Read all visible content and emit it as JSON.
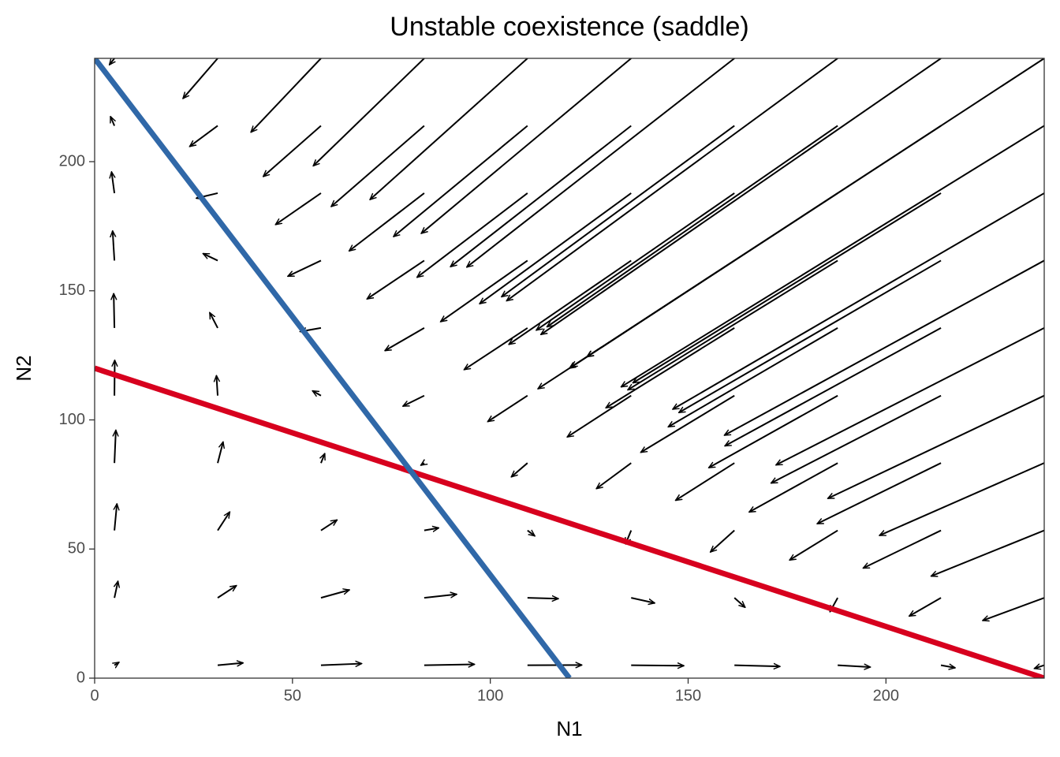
{
  "chart_data": {
    "type": "vector-field",
    "title": "Unstable coexistence (saddle)",
    "x_label": "N1",
    "y_label": "N2",
    "xlim": [
      0,
      240
    ],
    "ylim": [
      0,
      240
    ],
    "xticks": [
      0,
      50,
      100,
      150,
      200
    ],
    "yticks": [
      0,
      50,
      100,
      150,
      200
    ],
    "arrows": {
      "color": "#000000",
      "x": [
        5,
        31.1,
        57.2,
        83.3,
        109.4,
        135.6,
        161.7,
        187.8,
        213.9,
        240
      ],
      "y": [
        5,
        31.1,
        57.2,
        83.3,
        109.4,
        135.6,
        161.7,
        187.8,
        213.9,
        240
      ],
      "dx": [
        [
          1.17,
          0.9,
          0.63,
          0.36,
          0.08,
          -0.19,
          -0.46,
          -0.73,
          -1.0,
          -1.28
        ],
        [
          6.44,
          4.75,
          3.06,
          1.37,
          -0.32,
          -2.02,
          -3.71,
          -5.4,
          -7.09,
          -8.78
        ],
        [
          10.3,
          7.19,
          4.08,
          0.97,
          -2.14,
          -5.27,
          -8.38,
          -11.49,
          -14.6,
          -17.71
        ],
        [
          12.73,
          8.2,
          3.67,
          -0.86,
          -5.39,
          -9.94,
          -14.46,
          -18.99,
          -23.52,
          -28.05
        ],
        [
          13.74,
          7.79,
          1.85,
          -4.1,
          -10.05,
          -16.02,
          -21.97,
          -27.92,
          -33.87,
          -39.82
        ],
        [
          13.33,
          5.96,
          -1.41,
          -8.79,
          -16.16,
          -23.56,
          -30.93,
          -38.31,
          -45.68,
          -53.05
        ],
        [
          11.5,
          2.71,
          -6.08,
          -14.87,
          -23.67,
          -32.49,
          -41.28,
          -50.08,
          -58.87,
          -67.66
        ],
        [
          8.26,
          -1.96,
          -12.17,
          -22.38,
          -32.59,
          -42.84,
          -53.05,
          -63.27,
          -73.48,
          -83.69
        ],
        [
          3.59,
          -8.04,
          -19.67,
          -31.3,
          -42.94,
          -54.61,
          -66.24,
          -77.87,
          -89.5,
          -101.13
        ],
        [
          -2.5,
          -15.55,
          -28.6,
          -41.65,
          -54.7,
          -67.8,
          -80.85,
          -93.9,
          -106.95,
          -120
        ]
      ],
      "dy": [
        [
          1.17,
          6.44,
          10.3,
          12.73,
          13.74,
          13.33,
          11.5,
          8.26,
          3.59,
          -2.5
        ],
        [
          0.9,
          4.75,
          7.19,
          8.2,
          7.79,
          5.96,
          2.71,
          -1.96,
          -8.04,
          -15.55
        ],
        [
          0.63,
          3.06,
          4.08,
          3.67,
          1.85,
          -1.41,
          -6.08,
          -12.17,
          -19.67,
          -28.6
        ],
        [
          0.36,
          1.37,
          0.97,
          -0.86,
          -4.1,
          -8.79,
          -14.87,
          -22.38,
          -31.3,
          -41.65
        ],
        [
          0.08,
          -0.32,
          -2.14,
          -5.39,
          -10.05,
          -16.16,
          -23.67,
          -32.59,
          -42.94,
          -54.7
        ],
        [
          -0.19,
          -2.02,
          -5.27,
          -9.94,
          -16.02,
          -23.56,
          -32.49,
          -42.84,
          -54.61,
          -67.8
        ],
        [
          -0.46,
          -3.71,
          -8.38,
          -14.46,
          -21.97,
          -30.93,
          -41.28,
          -53.05,
          -66.24,
          -80.85
        ],
        [
          -0.73,
          -5.4,
          -11.49,
          -18.99,
          -27.92,
          -38.31,
          -50.08,
          -63.27,
          -77.87,
          -93.9
        ],
        [
          -1.0,
          -7.09,
          -14.6,
          -23.52,
          -33.87,
          -45.68,
          -58.87,
          -73.48,
          -89.5,
          -106.95
        ],
        [
          -1.28,
          -8.78,
          -17.71,
          -28.05,
          -39.82,
          -53.05,
          -67.66,
          -83.69,
          -101.13,
          -120
        ]
      ]
    },
    "lines": [
      {
        "color": "#d7001e",
        "x": [
          0,
          240
        ],
        "y": [
          120,
          0
        ]
      },
      {
        "color": "#3068a8",
        "x": [
          0,
          120
        ],
        "y": [
          240,
          0
        ]
      }
    ]
  }
}
